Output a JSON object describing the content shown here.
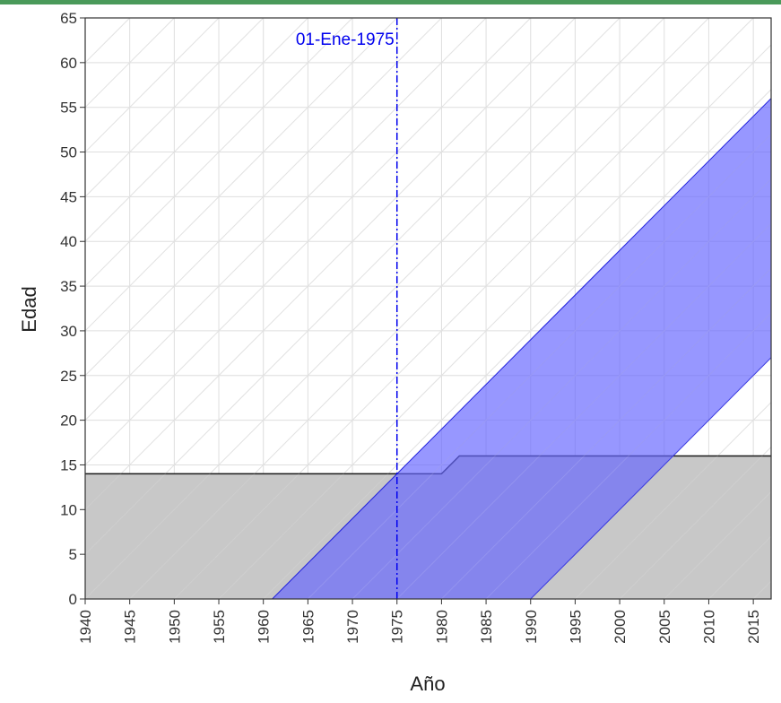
{
  "chart_data": {
    "type": "area",
    "xlabel": "Año",
    "ylabel": "Edad",
    "xlim": [
      1940,
      2017
    ],
    "ylim": [
      0,
      65
    ],
    "x_ticks": [
      1940,
      1945,
      1950,
      1955,
      1960,
      1965,
      1970,
      1975,
      1980,
      1985,
      1990,
      1995,
      2000,
      2005,
      2010,
      2015
    ],
    "y_ticks": [
      0,
      5,
      10,
      15,
      20,
      25,
      30,
      35,
      40,
      45,
      50,
      55,
      60,
      65
    ],
    "grid": true,
    "diagonal_grid": true,
    "series": [
      {
        "kind": "step-area",
        "color": "#c8c8c8",
        "line_color": "#1a1a1a",
        "points": [
          [
            1940,
            14
          ],
          [
            1980,
            14
          ],
          [
            1982,
            16
          ],
          [
            2017,
            16
          ]
        ]
      },
      {
        "kind": "band",
        "color": "#6666ff",
        "line_color": "#2020dd",
        "polygon": [
          [
            1961,
            0
          ],
          [
            1990,
            0
          ],
          [
            2017,
            27
          ],
          [
            2017,
            56
          ]
        ]
      }
    ],
    "annotations": [
      {
        "type": "vline",
        "x": 1975,
        "label": "01-Ene-1975",
        "color": "#0000ee"
      }
    ]
  },
  "colors": {
    "top_bar": "#4a9a5a",
    "grid": "#dedede",
    "axis": "#333333",
    "tick_label": "#333333"
  }
}
